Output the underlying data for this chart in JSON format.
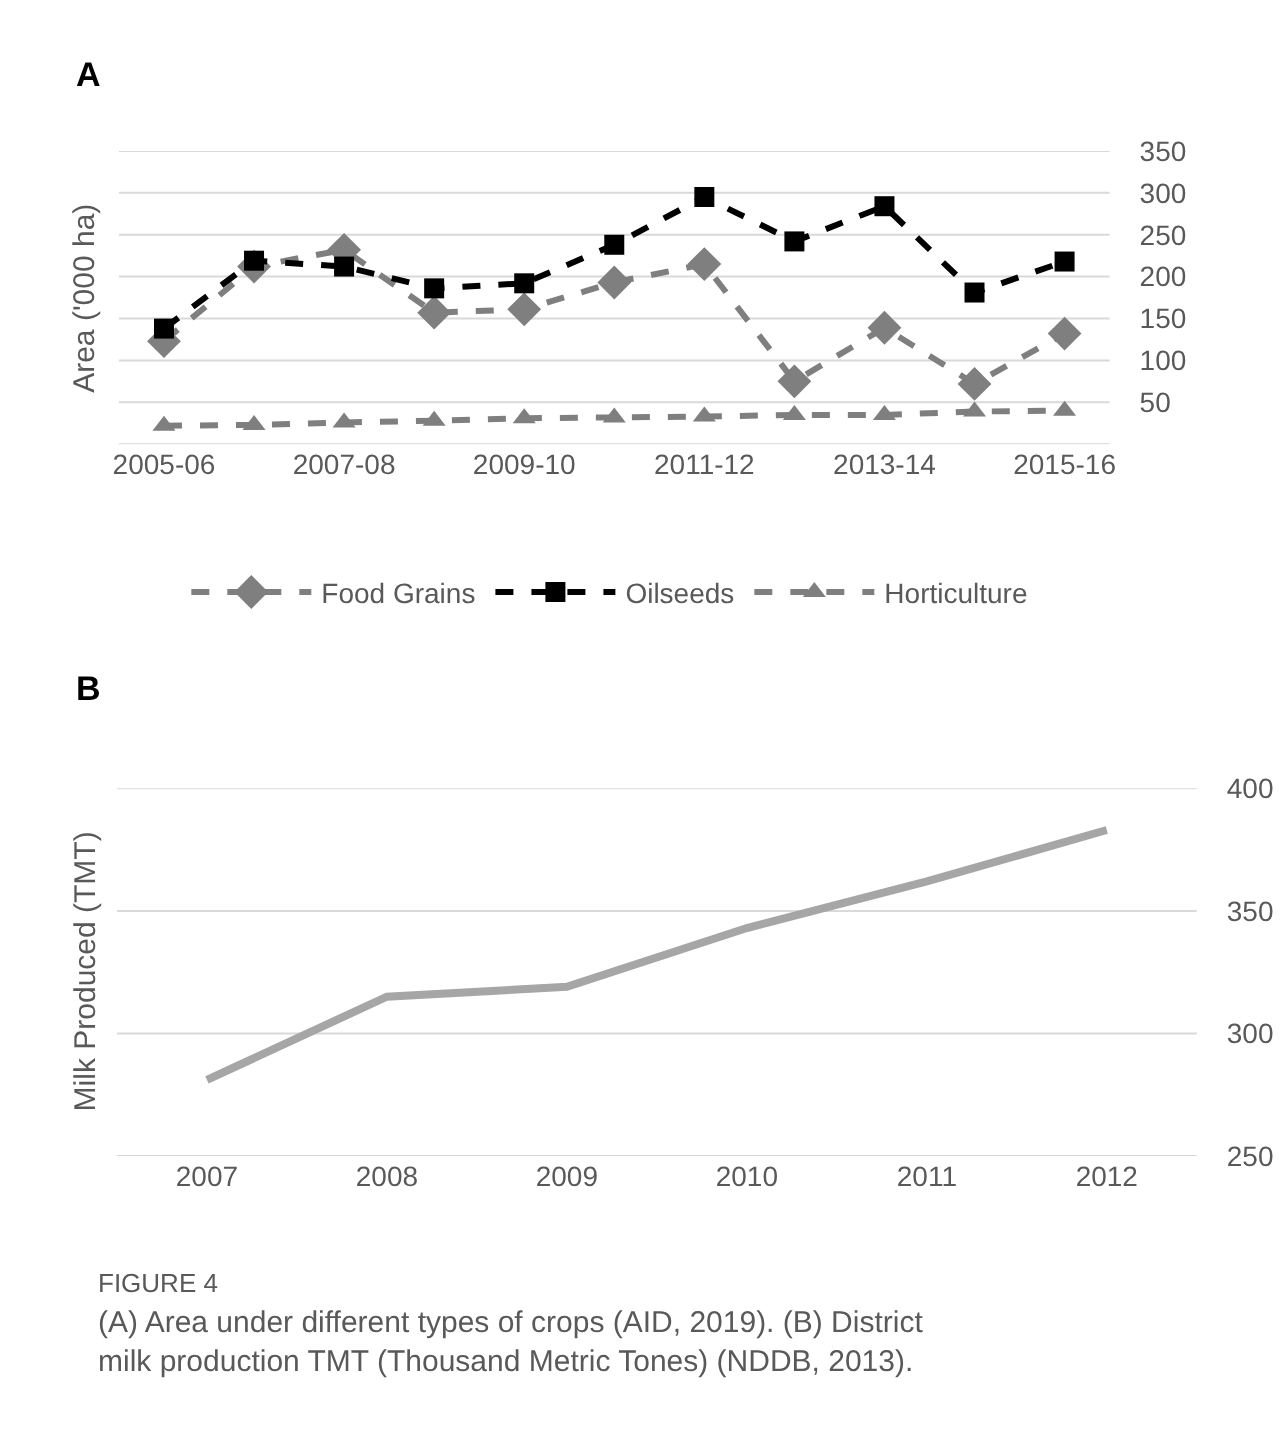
{
  "chart_data": [
    {
      "type": "line",
      "title": "A",
      "ylabel": "Area ('000 ha)",
      "categories": [
        "2005-06",
        null,
        "2007-08",
        null,
        "2009-10",
        null,
        "2011-12",
        null,
        "2013-14",
        null,
        "2015-16"
      ],
      "series": [
        {
          "name": "Food Grains",
          "color": "#7f7f7f",
          "marker": "diamond",
          "line_style": "dashed",
          "values": [
            123,
            212,
            232,
            157,
            161,
            193,
            215,
            75,
            139,
            72,
            132
          ]
        },
        {
          "name": "Oilseeds",
          "color": "#000000",
          "marker": "square",
          "line_style": "dashed",
          "values": [
            138,
            219,
            212,
            186,
            192,
            238,
            295,
            242,
            284,
            181,
            218
          ]
        },
        {
          "name": "Horticulture",
          "color": "#7f7f7f",
          "marker": "triangle",
          "line_style": "dashed",
          "values": [
            22,
            23,
            26,
            28,
            31,
            32,
            33,
            35,
            35,
            39,
            40
          ]
        }
      ],
      "ylim": [
        0,
        350
      ],
      "yticks": [
        {
          "value": 0,
          "label": null
        },
        50,
        100,
        150,
        200,
        250,
        300,
        350
      ],
      "grid": "y",
      "legend": "bottom"
    },
    {
      "type": "line",
      "title": "B",
      "ylabel": "Milk Produced (TMT)",
      "categories": [
        "2007",
        "2008",
        "2009",
        "2010",
        "2011",
        "2012"
      ],
      "series": [
        {
          "color": "#a6a6a6",
          "values": [
            281,
            315,
            319,
            343,
            362,
            383
          ]
        }
      ],
      "ylim": [
        250,
        400
      ],
      "yticks": [
        250,
        300,
        350,
        400
      ],
      "grid": "y",
      "legend": false,
      "annotations": [
        "FIGURE 4",
        "(A) Area under different types of crops (AID, 2019). (B) District milk production TMT (Thousand Metric Tones) (NDDB, 2013)."
      ]
    }
  ]
}
